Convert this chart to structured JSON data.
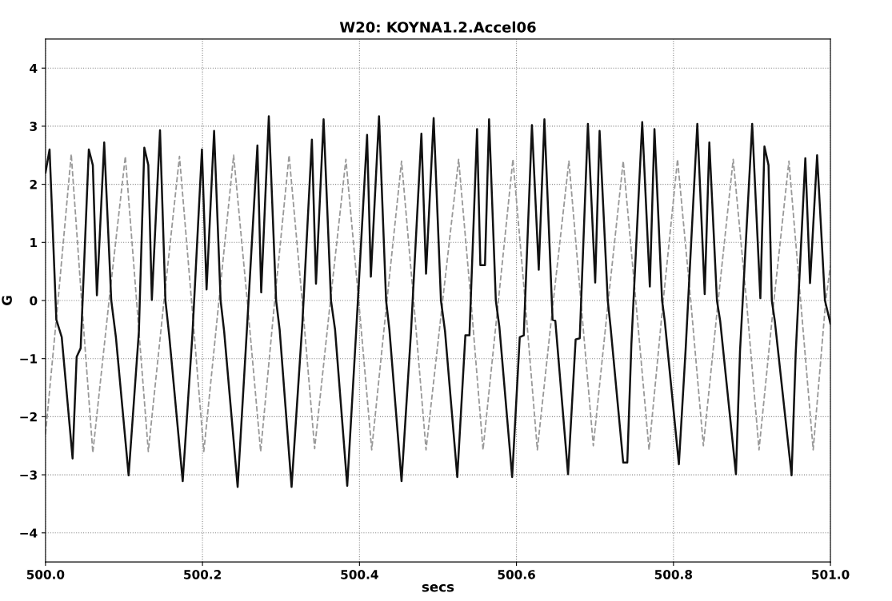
{
  "chart_data": {
    "type": "line",
    "title": "W20: KOYNA1.2.Accel06",
    "xlabel": "secs",
    "ylabel": "G",
    "xlim": [
      500.0,
      501.0
    ],
    "xticks": [
      {
        "value": 500.0,
        "label": "500.0"
      },
      {
        "value": 500.2,
        "label": "500.2"
      },
      {
        "value": 500.4,
        "label": "500.4"
      },
      {
        "value": 500.6,
        "label": "500.6"
      },
      {
        "value": 500.8,
        "label": "500.8"
      },
      {
        "value": 501.0,
        "label": "501.0"
      }
    ],
    "ylim": [
      -4.5,
      4.5
    ],
    "yticks": [
      {
        "value": -4,
        "label": "−4"
      },
      {
        "value": -3,
        "label": "−3"
      },
      {
        "value": -2,
        "label": "−2"
      },
      {
        "value": -1,
        "label": "−1"
      },
      0,
      1,
      2,
      3,
      4
    ],
    "grid": true,
    "series": [
      {
        "color": "#999999",
        "line_style": "dashed",
        "x": [
          500.0,
          500.016,
          500.0328,
          500.046,
          500.0603,
          500.081,
          500.1017,
          500.116,
          500.131,
          500.151,
          500.1707,
          500.186,
          500.2017,
          500.221,
          500.2397,
          500.257,
          500.2741,
          500.292,
          500.3103,
          500.327,
          500.3429,
          500.363,
          500.3827,
          500.399,
          500.4156,
          500.435,
          500.4536,
          500.469,
          500.4848,
          500.506,
          500.5263,
          500.542,
          500.5574,
          500.577,
          500.5955,
          500.611,
          500.6266,
          500.647,
          500.6668,
          500.682,
          500.6979,
          500.717,
          500.736,
          500.752,
          500.7689,
          500.787,
          500.8052,
          500.822,
          500.8381,
          500.857,
          500.8761,
          500.893,
          500.909,
          500.928,
          500.9471,
          500.962,
          500.978,
          500.994,
          501.0
        ],
        "values": [
          -2.3,
          0,
          2.52,
          0,
          -2.62,
          0,
          2.48,
          0,
          -2.6,
          0,
          2.48,
          0,
          -2.6,
          0,
          2.5,
          0,
          -2.6,
          0,
          2.5,
          0,
          -2.55,
          0,
          2.43,
          0,
          -2.57,
          0,
          2.4,
          0,
          -2.57,
          0,
          2.43,
          0,
          -2.57,
          0,
          2.43,
          0,
          -2.57,
          0,
          2.4,
          0,
          -2.5,
          0,
          2.4,
          0,
          -2.57,
          0,
          2.43,
          0,
          -2.5,
          0,
          2.43,
          0,
          -2.57,
          0,
          2.4,
          0,
          -2.57,
          0,
          0.6
        ]
      },
      {
        "color": "#111111",
        "line_style": "solid",
        "x": [
          500.0,
          500.0052,
          500.0138,
          500.0207,
          500.0345,
          500.0397,
          500.0448,
          500.0552,
          500.0603,
          500.0655,
          500.0748,
          500.0838,
          500.0897,
          500.1059,
          500.119,
          500.1259,
          500.131,
          500.1355,
          500.1459,
          500.1528,
          500.1576,
          500.1748,
          500.1872,
          500.1993,
          500.2052,
          500.2148,
          500.2231,
          500.2276,
          500.2448,
          500.2569,
          500.27,
          500.2748,
          500.2845,
          500.2938,
          500.2983,
          500.3135,
          500.3273,
          500.3394,
          500.3446,
          500.3543,
          500.3637,
          500.3689,
          500.3844,
          500.3958,
          500.4097,
          500.4145,
          500.4249,
          500.4339,
          500.4381,
          500.4536,
          500.4657,
          500.4789,
          500.4848,
          500.4945,
          500.5038,
          500.509,
          500.5246,
          500.5349,
          500.5401,
          500.5498,
          500.554,
          500.5599,
          500.5651,
          500.5737,
          500.5782,
          500.5945,
          500.6042,
          500.6093,
          500.6197,
          500.6284,
          500.6356,
          500.646,
          500.6495,
          500.6657,
          500.6754,
          500.6806,
          500.691,
          500.7003,
          500.7059,
          500.7163,
          500.7197,
          500.736,
          500.7412,
          500.7464,
          500.7602,
          500.7699,
          500.7758,
          500.7855,
          500.7889,
          500.8069,
          500.8156,
          500.8304,
          500.8398,
          500.8457,
          500.8554,
          500.8595,
          500.8796,
          500.8848,
          500.9003,
          500.9107,
          500.9159,
          500.9211,
          500.9253,
          500.9291,
          500.9505,
          500.9557,
          500.968,
          500.974,
          500.983,
          500.993,
          501.0
        ],
        "values": [
          2.2,
          2.6,
          -0.33,
          -0.63,
          -2.72,
          -0.97,
          -0.82,
          2.6,
          2.33,
          0.09,
          2.72,
          0,
          -0.63,
          -3.01,
          -0.53,
          2.63,
          2.33,
          0.01,
          2.93,
          0,
          -0.6,
          -3.11,
          -0.58,
          2.6,
          0.19,
          2.92,
          0,
          -0.53,
          -3.21,
          -0.43,
          2.67,
          0.14,
          3.17,
          0,
          -0.5,
          -3.21,
          -0.38,
          2.77,
          0.29,
          3.12,
          0,
          -0.5,
          -3.19,
          -0.53,
          2.85,
          0.41,
          3.17,
          0,
          -0.5,
          -3.11,
          -0.53,
          2.87,
          0.46,
          3.14,
          0,
          -0.53,
          -3.04,
          -0.6,
          -0.6,
          2.95,
          0.61,
          0.61,
          3.12,
          0,
          -0.45,
          -3.04,
          -0.63,
          -0.6,
          3.02,
          0.53,
          3.12,
          -0.33,
          -0.35,
          -2.99,
          -0.67,
          -0.65,
          3.04,
          0.31,
          2.92,
          0,
          -0.43,
          -2.79,
          -2.79,
          -0.75,
          3.07,
          0.24,
          2.95,
          0,
          -0.35,
          -2.82,
          -0.82,
          3.04,
          0.11,
          2.72,
          0,
          -0.35,
          -2.99,
          -0.87,
          3.04,
          0.04,
          2.65,
          2.33,
          0,
          -0.35,
          -3.01,
          -0.92,
          2.45,
          0.3,
          2.5,
          0.0,
          -0.4
        ]
      }
    ]
  }
}
